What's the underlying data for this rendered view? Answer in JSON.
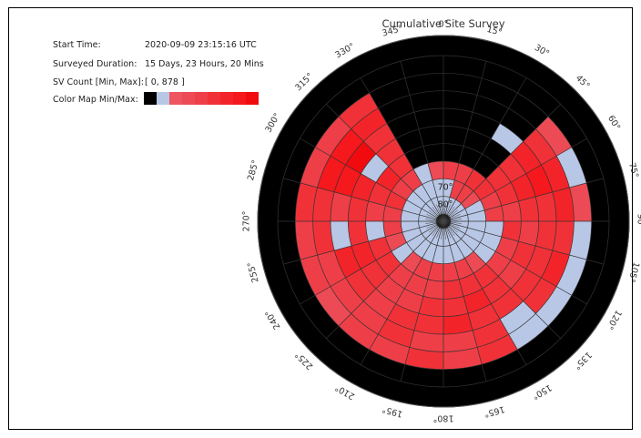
{
  "info": {
    "start_time_label": "Start Time:",
    "start_time_value": "2020-09-09 23:15:16 UTC",
    "duration_label": "Surveyed Duration:",
    "duration_value": "15 Days, 23 Hours, 20 Mins",
    "sv_count_label": "SV Count [Min, Max]:",
    "sv_count_value": "[ 0, 878 ]",
    "colormap_label": "Color Map Min/Max:"
  },
  "colors": {
    "min": "#000000",
    "low": "#b9c7e6",
    "scale": [
      "#ee5560",
      "#ec4b55",
      "#ee3f48",
      "#f03138",
      "#f22429",
      "#f5181c",
      "#f10b0e"
    ]
  },
  "chart_data": {
    "type": "polar-heatmap",
    "title": "Cumulative Site Survey",
    "theta_ticks": [
      "0°",
      "15°",
      "30°",
      "45°",
      "60°",
      "75°",
      "90°",
      "105°",
      "120°",
      "135°",
      "150°",
      "165°",
      "180°",
      "195°",
      "210°",
      "225°",
      "240°",
      "255°",
      "270°",
      "285°",
      "300°",
      "315°",
      "330°",
      "345°"
    ],
    "radial_ticks": [
      "70°",
      "80°"
    ],
    "azimuth_bins_deg": 15,
    "elevation_rings": [
      0,
      10,
      20,
      30,
      40,
      50,
      60,
      70,
      80
    ],
    "value_range": [
      0,
      878
    ],
    "cells_note": "rows = elevation ring (0=horizon..8=zenith), columns = azimuth bins starting at 0°; values 0..878",
    "cells": [
      [
        0,
        0,
        0,
        0,
        0,
        0,
        0,
        0,
        0,
        0,
        0,
        0,
        0,
        0,
        0,
        0,
        0,
        0,
        0,
        0,
        0,
        0,
        0,
        0
      ],
      [
        0,
        0,
        0,
        420,
        180,
        360,
        170,
        120,
        210,
        170,
        600,
        460,
        520,
        500,
        470,
        380,
        480,
        500,
        520,
        500,
        440,
        560,
        0,
        0
      ],
      [
        0,
        0,
        0,
        540,
        680,
        640,
        580,
        620,
        560,
        140,
        600,
        480,
        470,
        520,
        500,
        440,
        500,
        560,
        580,
        760,
        700,
        660,
        0,
        0
      ],
      [
        0,
        0,
        120,
        620,
        720,
        600,
        560,
        520,
        600,
        520,
        560,
        640,
        580,
        520,
        460,
        560,
        620,
        200,
        500,
        780,
        820,
        560,
        0,
        0
      ],
      [
        0,
        0,
        0,
        600,
        640,
        520,
        500,
        540,
        500,
        560,
        620,
        600,
        520,
        480,
        500,
        580,
        640,
        560,
        520,
        640,
        180,
        520,
        0,
        0
      ],
      [
        0,
        0,
        0,
        560,
        560,
        480,
        520,
        500,
        460,
        520,
        540,
        520,
        500,
        460,
        480,
        520,
        560,
        140,
        440,
        560,
        620,
        520,
        0,
        0
      ],
      [
        500,
        460,
        540,
        520,
        480,
        460,
        140,
        200,
        160,
        420,
        500,
        460,
        480,
        440,
        420,
        200,
        420,
        460,
        480,
        520,
        500,
        460,
        180,
        420
      ],
      [
        200,
        460,
        480,
        420,
        180,
        160,
        120,
        140,
        200,
        160,
        180,
        180,
        160,
        140,
        160,
        140,
        180,
        160,
        120,
        140,
        200,
        160,
        180,
        200
      ],
      [
        160,
        140,
        120,
        150,
        130,
        140,
        120,
        150,
        160,
        140,
        150,
        160,
        140,
        130,
        150,
        140,
        160,
        150,
        140,
        130,
        160,
        140,
        150,
        140
      ]
    ]
  }
}
